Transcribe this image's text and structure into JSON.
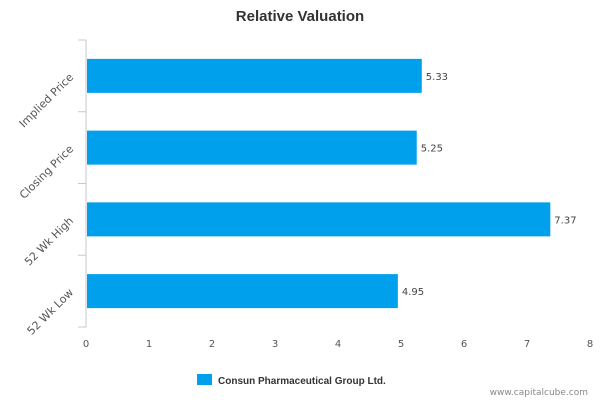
{
  "chart_data": {
    "type": "bar",
    "orientation": "horizontal",
    "title": "Relative Valuation",
    "categories": [
      "Implied Price",
      "Closing Price",
      "52 Wk High",
      "52 Wk Low"
    ],
    "series": [
      {
        "name": "Consun Pharmaceutical Group Ltd.",
        "values": [
          5.33,
          5.25,
          7.37,
          4.95
        ],
        "color": "#00a0ec"
      }
    ],
    "data_labels": [
      "5.33",
      "5.25",
      "7.37",
      "4.95"
    ],
    "x_ticks": [
      "0",
      "1",
      "2",
      "3",
      "4",
      "5",
      "6",
      "7",
      "8"
    ],
    "xlim": [
      0,
      8
    ],
    "xlabel": "",
    "ylabel": "",
    "grid": false,
    "legend_position": "bottom"
  },
  "credit": "www.capitalcube.com"
}
